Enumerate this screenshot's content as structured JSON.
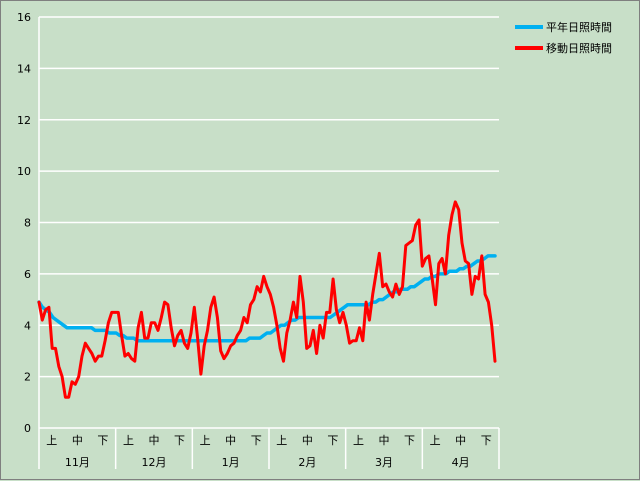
{
  "chart_data": {
    "type": "line",
    "ylim": [
      0,
      16
    ],
    "yticks": [
      0,
      2,
      4,
      6,
      8,
      10,
      12,
      14,
      16
    ],
    "grid": true,
    "legend_position": "top-right",
    "x_categories_level1": [
      "上",
      "中",
      "下",
      "上",
      "中",
      "下",
      "上",
      "中",
      "下",
      "上",
      "中",
      "下",
      "上",
      "中",
      "下",
      "上",
      "中",
      "下"
    ],
    "x_categories_level2": [
      "11月",
      "12月",
      "1月",
      "2月",
      "3月",
      "4月"
    ],
    "series": [
      {
        "name": "平年日照時間",
        "color": "#00b0f0",
        "values": [
          4.9,
          4.7,
          4.6,
          4.5,
          4.3,
          4.2,
          4.1,
          4.0,
          3.9,
          3.9,
          3.9,
          3.9,
          3.9,
          3.9,
          3.9,
          3.9,
          3.8,
          3.8,
          3.8,
          3.8,
          3.7,
          3.7,
          3.7,
          3.6,
          3.6,
          3.5,
          3.5,
          3.5,
          3.4,
          3.4,
          3.4,
          3.4,
          3.4,
          3.4,
          3.4,
          3.4,
          3.4,
          3.4,
          3.4,
          3.4,
          3.4,
          3.4,
          3.4,
          3.4,
          3.4,
          3.4,
          3.4,
          3.4,
          3.4,
          3.4,
          3.4,
          3.4,
          3.4,
          3.4,
          3.4,
          3.4,
          3.4,
          3.4,
          3.4,
          3.4,
          3.5,
          3.5,
          3.5,
          3.5,
          3.6,
          3.7,
          3.7,
          3.8,
          3.9,
          4.0,
          4.0,
          4.1,
          4.2,
          4.2,
          4.3,
          4.3,
          4.3,
          4.3,
          4.3,
          4.3,
          4.3,
          4.3,
          4.3,
          4.3,
          4.4,
          4.5,
          4.6,
          4.7,
          4.8,
          4.8,
          4.8,
          4.8,
          4.8,
          4.8,
          4.8,
          4.9,
          4.9,
          5.0,
          5.0,
          5.1,
          5.2,
          5.3,
          5.3,
          5.4,
          5.4,
          5.4,
          5.5,
          5.5,
          5.6,
          5.7,
          5.8,
          5.8,
          5.9,
          5.9,
          6.0,
          6.0,
          6.0,
          6.1,
          6.1,
          6.1,
          6.2,
          6.2,
          6.3,
          6.3,
          6.4,
          6.5,
          6.5,
          6.6,
          6.7,
          6.7,
          6.7
        ]
      },
      {
        "name": "移動日照時間",
        "color": "#ff0000",
        "values": [
          4.9,
          4.2,
          4.6,
          4.7,
          3.1,
          3.1,
          2.4,
          2.0,
          1.2,
          1.2,
          1.8,
          1.7,
          2.0,
          2.8,
          3.3,
          3.1,
          2.9,
          2.6,
          2.8,
          2.8,
          3.4,
          4.1,
          4.5,
          4.5,
          4.5,
          3.6,
          2.8,
          2.9,
          2.7,
          2.6,
          3.9,
          4.5,
          3.5,
          3.5,
          4.1,
          4.1,
          3.8,
          4.3,
          4.9,
          4.8,
          3.9,
          3.2,
          3.6,
          3.8,
          3.3,
          3.1,
          3.7,
          4.7,
          3.5,
          2.1,
          3.2,
          3.8,
          4.7,
          5.1,
          4.3,
          3.0,
          2.7,
          2.9,
          3.2,
          3.3,
          3.6,
          3.8,
          4.3,
          4.1,
          4.8,
          5.0,
          5.5,
          5.3,
          5.9,
          5.5,
          5.2,
          4.7,
          4.0,
          3.1,
          2.6,
          3.7,
          4.2,
          4.9,
          4.3,
          5.9,
          4.9,
          3.1,
          3.2,
          3.8,
          2.9,
          4.0,
          3.5,
          4.5,
          4.5,
          5.8,
          4.6,
          4.1,
          4.5,
          4.0,
          3.3,
          3.4,
          3.4,
          3.9,
          3.4,
          4.9,
          4.2,
          5.2,
          6.0,
          6.8,
          5.5,
          5.6,
          5.3,
          5.1,
          5.6,
          5.2,
          5.5,
          7.1,
          7.2,
          7.3,
          7.9,
          8.1,
          6.3,
          6.6,
          6.7,
          5.8,
          4.8,
          6.4,
          6.6,
          6.0,
          7.5,
          8.3,
          8.8,
          8.5,
          7.2,
          6.5,
          6.4,
          5.2,
          5.9,
          5.8,
          6.7,
          5.2,
          4.9,
          4.0,
          2.6
        ]
      }
    ]
  }
}
